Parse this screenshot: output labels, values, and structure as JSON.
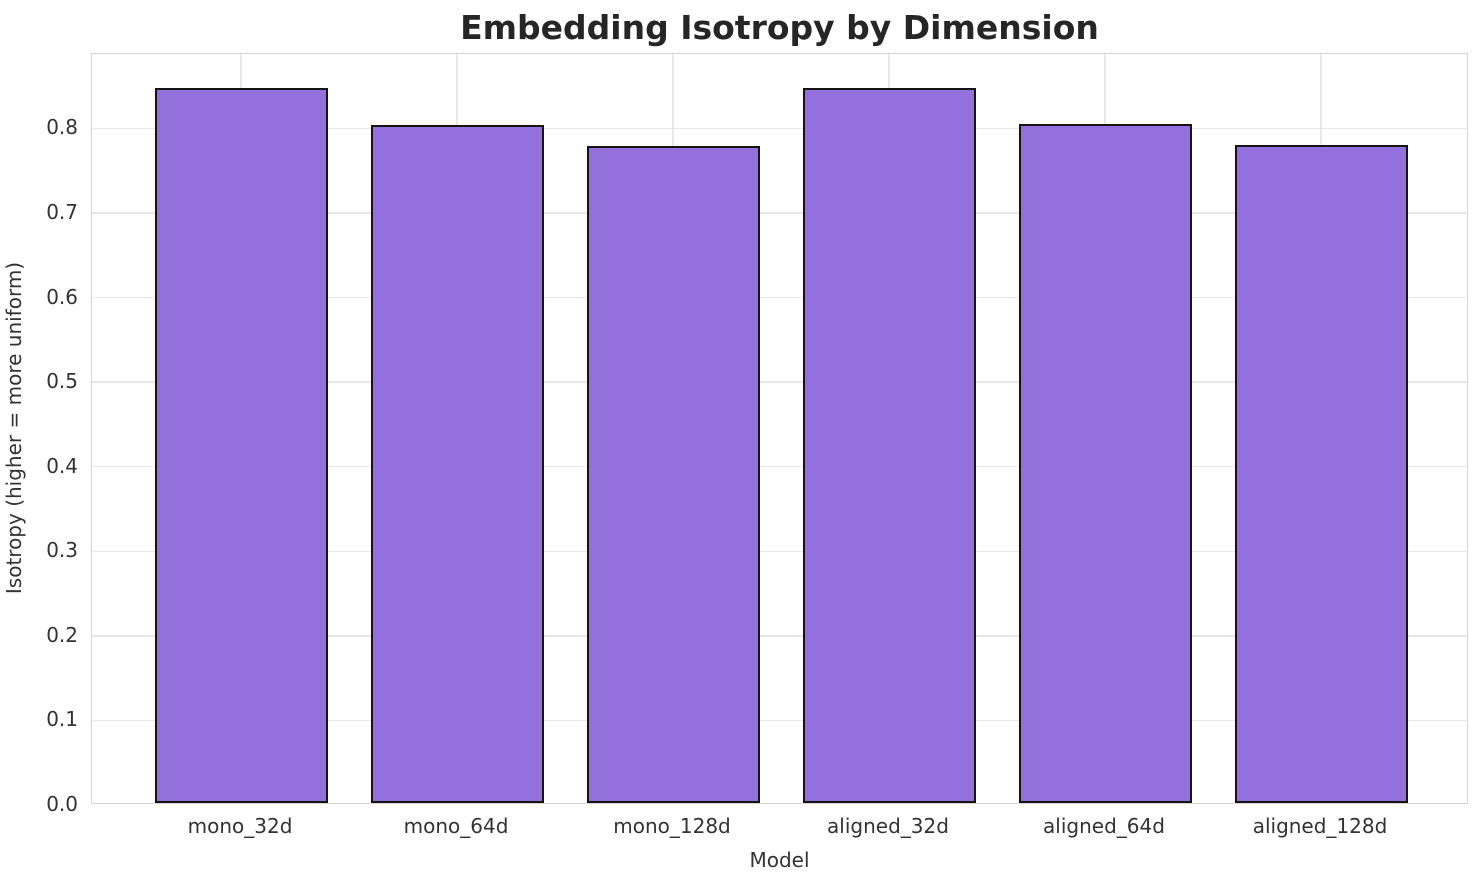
{
  "chart_data": {
    "type": "bar",
    "title": "Embedding Isotropy by Dimension",
    "xlabel": "Model",
    "ylabel": "Isotropy (higher = more uniform)",
    "categories": [
      "mono_32d",
      "mono_64d",
      "mono_128d",
      "aligned_32d",
      "aligned_64d",
      "aligned_128d"
    ],
    "values": [
      0.845,
      0.802,
      0.777,
      0.845,
      0.803,
      0.778
    ],
    "ylim": [
      0,
      0.888
    ],
    "yticks": [
      0.0,
      0.1,
      0.2,
      0.3,
      0.4,
      0.5,
      0.6,
      0.7,
      0.8
    ],
    "ytick_labels": [
      "0.0",
      "0.1",
      "0.2",
      "0.3",
      "0.4",
      "0.5",
      "0.6",
      "0.7",
      "0.8"
    ],
    "grid": "both",
    "legend": "none",
    "bar_color": "#9370DB",
    "bar_edge_color": "#141414",
    "background_color": "#ffffff",
    "grid_color": "#e8e8e8",
    "text_color": "#333333",
    "title_color": "#262626"
  }
}
